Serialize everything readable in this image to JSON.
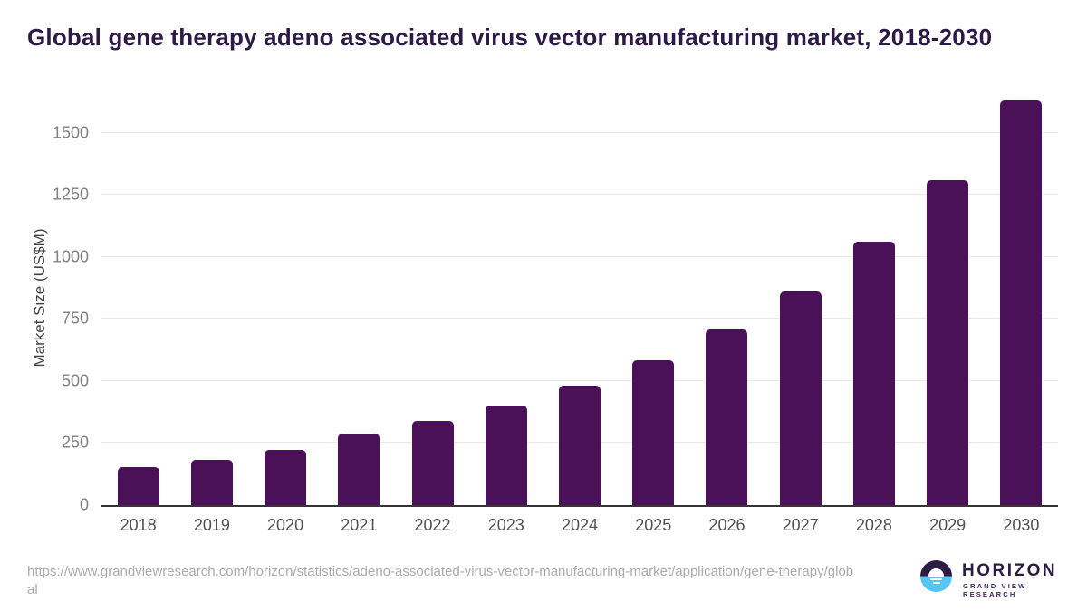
{
  "page": {
    "title": "Global gene therapy adeno associated virus vector manufacturing market, 2018-2030",
    "source_url": "https://www.grandviewresearch.com/horizon/statistics/adeno-associated-virus-vector-manufacturing-market/application/gene-therapy/global"
  },
  "branding": {
    "logo_name": "HORIZON",
    "logo_subtitle": "GRAND VIEW RESEARCH"
  },
  "colors": {
    "bar": "#4a1159",
    "title_text": "#2e1a47",
    "gridline": "#e9e9e9",
    "axis_line": "#343434",
    "y_tick_text": "#808080",
    "x_tick_text": "#4f4f4f",
    "url_text": "#ababab",
    "logo_navy": "#2b1c44",
    "logo_blue": "#56c5f2"
  },
  "chart_data": {
    "type": "bar",
    "title": "Global gene therapy adeno associated virus vector manufacturing market, 2018-2030",
    "categories": [
      "2018",
      "2019",
      "2020",
      "2021",
      "2022",
      "2023",
      "2024",
      "2025",
      "2026",
      "2027",
      "2028",
      "2029",
      "2030"
    ],
    "values": [
      153,
      184,
      224,
      287,
      338,
      400,
      482,
      583,
      708,
      862,
      1060,
      1308,
      1630
    ],
    "xlabel": "",
    "ylabel": "Market Size (US$M)",
    "yticks": [
      0,
      250,
      500,
      750,
      1000,
      1250,
      1500
    ],
    "ylim": [
      0,
      1670
    ],
    "grid": "horizontal",
    "legend": "none",
    "bar_color": "#4a1159"
  }
}
